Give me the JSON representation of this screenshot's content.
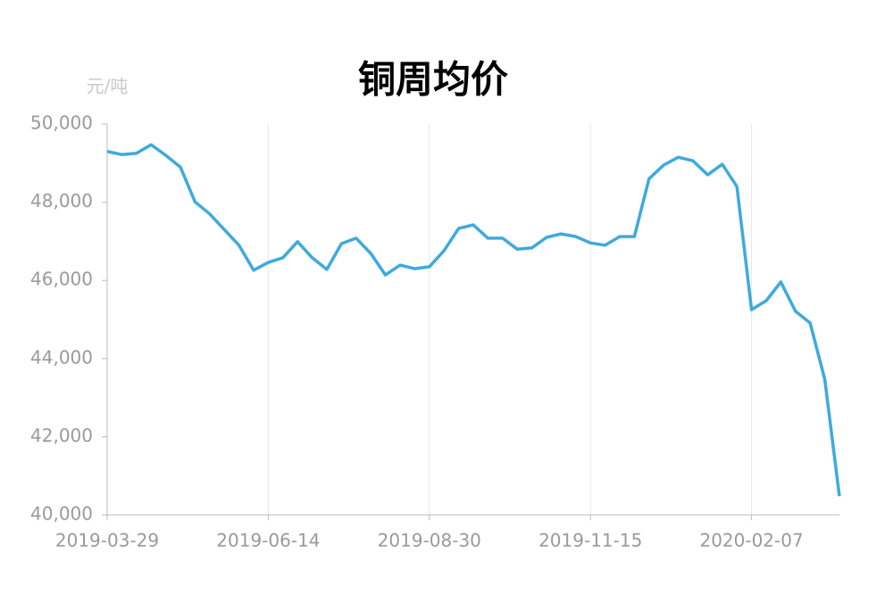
{
  "chart_data": {
    "type": "line",
    "title": "铜周均价",
    "y_unit": "元/吨",
    "categories": [
      "2019-03-29",
      null,
      null,
      null,
      null,
      null,
      null,
      null,
      null,
      null,
      null,
      "2019-06-14",
      null,
      null,
      null,
      null,
      null,
      null,
      null,
      null,
      null,
      null,
      "2019-08-30",
      null,
      null,
      null,
      null,
      null,
      null,
      null,
      null,
      null,
      null,
      "2019-11-15",
      null,
      null,
      null,
      null,
      null,
      null,
      null,
      null,
      null,
      null,
      "2020-02-07",
      null,
      null,
      null,
      null,
      null,
      null
    ],
    "series": [
      {
        "name": "铜周均价",
        "color": "#3eaadc",
        "values": [
          49300,
          49220,
          49250,
          49470,
          49200,
          48900,
          48010,
          47700,
          47300,
          46900,
          46260,
          46460,
          46580,
          46990,
          46580,
          46280,
          46940,
          47080,
          46690,
          46140,
          46390,
          46300,
          46350,
          46760,
          47330,
          47420,
          47080,
          47080,
          46800,
          46830,
          47100,
          47190,
          47120,
          46960,
          46900,
          47120,
          47120,
          48600,
          48950,
          49150,
          49060,
          48700,
          48970,
          48400,
          45250,
          45480,
          45960,
          45210,
          44910,
          43470,
          40480
        ]
      }
    ],
    "ylim": [
      40000,
      50000
    ],
    "yticks": [
      {
        "value": 40000,
        "label": "40,000"
      },
      {
        "value": 42000,
        "label": "42,000"
      },
      {
        "value": 44000,
        "label": "44,000"
      },
      {
        "value": 46000,
        "label": "46,000"
      },
      {
        "value": 48000,
        "label": "48,000"
      },
      {
        "value": 50000,
        "label": "50,000"
      }
    ],
    "grid": "x"
  }
}
